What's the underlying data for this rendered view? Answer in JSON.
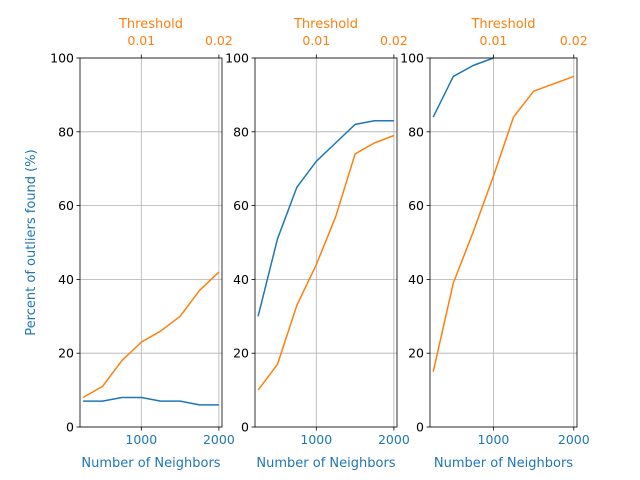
{
  "colors": {
    "neighbors": "#1f77b4",
    "threshold": "#ff7f0e",
    "grid": "#b0b0b0",
    "axis": "#000000"
  },
  "chart_data": [
    {
      "type": "line",
      "xlabel": "Number of Neighbors",
      "ylabel": "Percent of outliers found (%)",
      "top_xlabel": "Threshold",
      "xlim": [
        210,
        2040
      ],
      "ylim": [
        0,
        100
      ],
      "xticks": [
        1000,
        2000
      ],
      "yticks": [
        0,
        20,
        40,
        60,
        80,
        100
      ],
      "top_xticks": [
        "0.01",
        "0.02"
      ],
      "grid": true,
      "series": [
        {
          "axis": "bottom",
          "color": "#1f77b4",
          "x": [
            250,
            500,
            750,
            1000,
            1250,
            1500,
            1750,
            2000
          ],
          "y": [
            7,
            7,
            8,
            8,
            7,
            7,
            6,
            6
          ]
        },
        {
          "axis": "top",
          "color": "#ff7f0e",
          "x": [
            250,
            500,
            750,
            1000,
            1250,
            1500,
            1750,
            2000
          ],
          "y": [
            8,
            11,
            18,
            23,
            26,
            30,
            37,
            42
          ]
        }
      ]
    },
    {
      "type": "line",
      "xlabel": "Number of Neighbors",
      "ylabel": "",
      "top_xlabel": "Threshold",
      "xlim": [
        210,
        2040
      ],
      "ylim": [
        0,
        100
      ],
      "xticks": [
        1000,
        2000
      ],
      "yticks": [
        0,
        20,
        40,
        60,
        80,
        100
      ],
      "top_xticks": [
        "0.01",
        "0.02"
      ],
      "grid": true,
      "series": [
        {
          "axis": "bottom",
          "color": "#1f77b4",
          "x": [
            250,
            500,
            750,
            1000,
            1250,
            1500,
            1750,
            2000
          ],
          "y": [
            30,
            51,
            65,
            72,
            77,
            82,
            83,
            83
          ]
        },
        {
          "axis": "top",
          "color": "#ff7f0e",
          "x": [
            250,
            500,
            750,
            1000,
            1250,
            1500,
            1750,
            2000
          ],
          "y": [
            10,
            17,
            33,
            44,
            57,
            74,
            77,
            79
          ]
        }
      ]
    },
    {
      "type": "line",
      "xlabel": "Number of Neighbors",
      "ylabel": "",
      "top_xlabel": "Threshold",
      "xlim": [
        210,
        2040
      ],
      "ylim": [
        0,
        100
      ],
      "xticks": [
        1000,
        2000
      ],
      "yticks": [
        0,
        20,
        40,
        60,
        80,
        100
      ],
      "top_xticks": [
        "0.01",
        "0.02"
      ],
      "grid": true,
      "series": [
        {
          "axis": "bottom",
          "color": "#1f77b4",
          "x": [
            250,
            500,
            750,
            1000
          ],
          "y": [
            84,
            95,
            98,
            100
          ]
        },
        {
          "axis": "top",
          "color": "#ff7f0e",
          "x": [
            250,
            500,
            750,
            1000,
            1250,
            1500,
            1750,
            2000
          ],
          "y": [
            15,
            39,
            53,
            68,
            84,
            91,
            93,
            95
          ]
        }
      ]
    }
  ]
}
